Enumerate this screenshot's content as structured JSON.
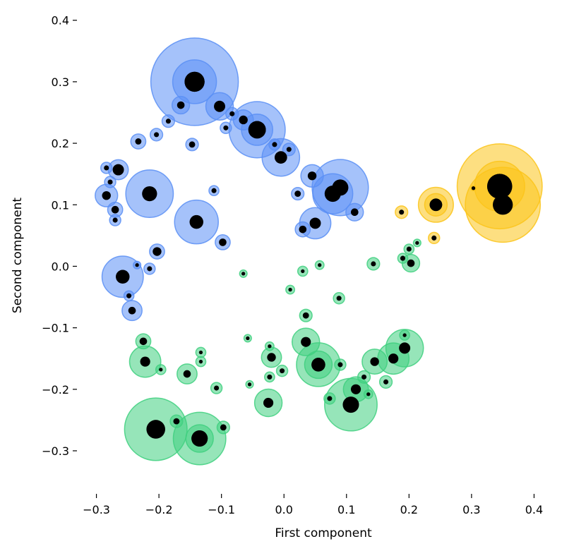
{
  "chart_data": {
    "type": "scatter",
    "title": "",
    "xlabel": "First component",
    "ylabel": "Second component",
    "xlim": [
      -0.33,
      0.43
    ],
    "ylim": [
      -0.37,
      0.41
    ],
    "x_ticks": [
      -0.3,
      -0.2,
      -0.1,
      0.0,
      0.1,
      0.2,
      0.3,
      0.4
    ],
    "x_tick_labels": [
      "−0.3",
      "−0.2",
      "−0.1",
      "0.0",
      "0.1",
      "0.2",
      "0.3",
      "0.4"
    ],
    "y_ticks": [
      0.4,
      0.3,
      0.2,
      0.1,
      0.0,
      -0.1,
      -0.2,
      -0.3
    ],
    "y_tick_labels": [
      "0.4",
      "0.3",
      "0.2",
      "0.1",
      "0.0",
      "−0.1",
      "−0.2",
      "−0.3"
    ],
    "grid": false,
    "colors": {
      "blue": "#5b8ff5",
      "green": "#3fd07f",
      "yellow": "#fcc419",
      "center": "#000000"
    },
    "series": [
      {
        "color_key": "blue",
        "points": [
          {
            "x": -0.143,
            "y": 0.3,
            "halo": 0.07,
            "core": 0.016
          },
          {
            "x": -0.143,
            "y": 0.3,
            "halo": 0.035,
            "core": 0.016
          },
          {
            "x": -0.043,
            "y": 0.222,
            "halo": 0.045,
            "core": 0.014
          },
          {
            "x": -0.043,
            "y": 0.222,
            "halo": 0.025,
            "core": 0.014
          },
          {
            "x": -0.103,
            "y": 0.26,
            "halo": 0.022,
            "core": 0.009
          },
          {
            "x": -0.065,
            "y": 0.238,
            "halo": 0.016,
            "core": 0.007
          },
          {
            "x": -0.005,
            "y": 0.177,
            "halo": 0.03,
            "core": 0.01
          },
          {
            "x": 0.09,
            "y": 0.128,
            "halo": 0.045,
            "core": 0.013
          },
          {
            "x": 0.078,
            "y": 0.118,
            "halo": 0.032,
            "core": 0.013
          },
          {
            "x": 0.05,
            "y": 0.07,
            "halo": 0.025,
            "core": 0.009
          },
          {
            "x": 0.045,
            "y": 0.147,
            "halo": 0.018,
            "core": 0.007
          },
          {
            "x": 0.113,
            "y": 0.088,
            "halo": 0.014,
            "core": 0.006
          },
          {
            "x": 0.03,
            "y": 0.06,
            "halo": 0.012,
            "core": 0.006
          },
          {
            "x": 0.022,
            "y": 0.118,
            "halo": 0.01,
            "core": 0.005
          },
          {
            "x": -0.215,
            "y": 0.118,
            "halo": 0.038,
            "core": 0.012
          },
          {
            "x": -0.14,
            "y": 0.072,
            "halo": 0.035,
            "core": 0.011
          },
          {
            "x": -0.258,
            "y": -0.017,
            "halo": 0.033,
            "core": 0.011
          },
          {
            "x": -0.265,
            "y": 0.157,
            "halo": 0.016,
            "core": 0.009
          },
          {
            "x": -0.284,
            "y": 0.115,
            "halo": 0.018,
            "core": 0.007
          },
          {
            "x": -0.27,
            "y": 0.092,
            "halo": 0.012,
            "core": 0.006
          },
          {
            "x": -0.243,
            "y": -0.072,
            "halo": 0.016,
            "core": 0.006
          },
          {
            "x": -0.203,
            "y": 0.024,
            "halo": 0.012,
            "core": 0.007
          },
          {
            "x": -0.098,
            "y": 0.039,
            "halo": 0.012,
            "core": 0.006
          },
          {
            "x": -0.165,
            "y": 0.262,
            "halo": 0.014,
            "core": 0.006
          },
          {
            "x": -0.233,
            "y": 0.203,
            "halo": 0.012,
            "core": 0.005
          },
          {
            "x": -0.204,
            "y": 0.214,
            "halo": 0.01,
            "core": 0.004
          },
          {
            "x": -0.185,
            "y": 0.236,
            "halo": 0.01,
            "core": 0.004
          },
          {
            "x": -0.147,
            "y": 0.198,
            "halo": 0.01,
            "core": 0.005
          },
          {
            "x": -0.112,
            "y": 0.123,
            "halo": 0.008,
            "core": 0.004
          },
          {
            "x": -0.015,
            "y": 0.198,
            "halo": 0.009,
            "core": 0.004
          },
          {
            "x": -0.215,
            "y": -0.004,
            "halo": 0.009,
            "core": 0.004
          },
          {
            "x": -0.235,
            "y": 0.002,
            "halo": 0.006,
            "core": 0.003
          },
          {
            "x": -0.278,
            "y": 0.137,
            "halo": 0.009,
            "core": 0.004
          },
          {
            "x": -0.284,
            "y": 0.16,
            "halo": 0.009,
            "core": 0.004
          },
          {
            "x": -0.27,
            "y": 0.075,
            "halo": 0.009,
            "core": 0.004
          },
          {
            "x": -0.248,
            "y": -0.048,
            "halo": 0.008,
            "core": 0.004
          },
          {
            "x": -0.083,
            "y": 0.248,
            "halo": 0.01,
            "core": 0.004
          },
          {
            "x": -0.093,
            "y": 0.225,
            "halo": 0.009,
            "core": 0.004
          },
          {
            "x": 0.008,
            "y": 0.19,
            "halo": 0.01,
            "core": 0.004
          }
        ]
      },
      {
        "color_key": "green",
        "points": [
          {
            "x": -0.205,
            "y": -0.265,
            "halo": 0.05,
            "core": 0.015
          },
          {
            "x": -0.135,
            "y": -0.28,
            "halo": 0.042,
            "core": 0.013
          },
          {
            "x": -0.135,
            "y": -0.28,
            "halo": 0.022,
            "core": 0.013
          },
          {
            "x": 0.107,
            "y": -0.225,
            "halo": 0.042,
            "core": 0.013
          },
          {
            "x": 0.055,
            "y": -0.16,
            "halo": 0.035,
            "core": 0.011
          },
          {
            "x": 0.055,
            "y": -0.16,
            "halo": 0.022,
            "core": 0.011
          },
          {
            "x": 0.193,
            "y": -0.133,
            "halo": 0.03,
            "core": 0.009
          },
          {
            "x": 0.175,
            "y": -0.15,
            "halo": 0.025,
            "core": 0.008
          },
          {
            "x": 0.035,
            "y": -0.123,
            "halo": 0.022,
            "core": 0.008
          },
          {
            "x": -0.025,
            "y": -0.222,
            "halo": 0.022,
            "core": 0.008
          },
          {
            "x": -0.222,
            "y": -0.155,
            "halo": 0.025,
            "core": 0.008
          },
          {
            "x": -0.225,
            "y": -0.122,
            "halo": 0.012,
            "core": 0.006
          },
          {
            "x": 0.145,
            "y": -0.155,
            "halo": 0.02,
            "core": 0.007
          },
          {
            "x": 0.115,
            "y": -0.2,
            "halo": 0.02,
            "core": 0.008
          },
          {
            "x": -0.02,
            "y": -0.148,
            "halo": 0.016,
            "core": 0.007
          },
          {
            "x": -0.155,
            "y": -0.175,
            "halo": 0.016,
            "core": 0.006
          },
          {
            "x": -0.097,
            "y": -0.262,
            "halo": 0.01,
            "core": 0.005
          },
          {
            "x": -0.172,
            "y": -0.252,
            "halo": 0.01,
            "core": 0.005
          },
          {
            "x": -0.108,
            "y": -0.198,
            "halo": 0.009,
            "core": 0.004
          },
          {
            "x": 0.035,
            "y": -0.08,
            "halo": 0.01,
            "core": 0.005
          },
          {
            "x": 0.088,
            "y": -0.052,
            "halo": 0.009,
            "core": 0.004
          },
          {
            "x": 0.143,
            "y": 0.004,
            "halo": 0.01,
            "core": 0.004
          },
          {
            "x": 0.203,
            "y": 0.005,
            "halo": 0.014,
            "core": 0.006
          },
          {
            "x": 0.2,
            "y": 0.028,
            "halo": 0.008,
            "core": 0.004
          },
          {
            "x": 0.19,
            "y": 0.013,
            "halo": 0.008,
            "core": 0.004
          },
          {
            "x": 0.213,
            "y": 0.038,
            "halo": 0.006,
            "core": 0.003
          },
          {
            "x": 0.163,
            "y": -0.188,
            "halo": 0.01,
            "core": 0.004
          },
          {
            "x": 0.128,
            "y": -0.18,
            "halo": 0.01,
            "core": 0.004
          },
          {
            "x": 0.135,
            "y": -0.208,
            "halo": 0.007,
            "core": 0.003
          },
          {
            "x": 0.073,
            "y": -0.215,
            "halo": 0.009,
            "core": 0.004
          },
          {
            "x": 0.09,
            "y": -0.16,
            "halo": 0.009,
            "core": 0.004
          },
          {
            "x": -0.003,
            "y": -0.17,
            "halo": 0.009,
            "core": 0.004
          },
          {
            "x": -0.023,
            "y": -0.18,
            "halo": 0.008,
            "core": 0.004
          },
          {
            "x": -0.023,
            "y": -0.13,
            "halo": 0.007,
            "core": 0.003
          },
          {
            "x": -0.058,
            "y": -0.117,
            "halo": 0.006,
            "core": 0.003
          },
          {
            "x": -0.055,
            "y": -0.192,
            "halo": 0.006,
            "core": 0.003
          },
          {
            "x": -0.197,
            "y": -0.168,
            "halo": 0.008,
            "core": 0.003
          },
          {
            "x": -0.133,
            "y": -0.14,
            "halo": 0.008,
            "core": 0.003
          },
          {
            "x": -0.133,
            "y": -0.155,
            "halo": 0.008,
            "core": 0.003
          },
          {
            "x": 0.03,
            "y": -0.008,
            "halo": 0.008,
            "core": 0.003
          },
          {
            "x": 0.057,
            "y": 0.002,
            "halo": 0.007,
            "core": 0.003
          },
          {
            "x": 0.01,
            "y": -0.038,
            "halo": 0.007,
            "core": 0.003
          },
          {
            "x": -0.065,
            "y": -0.012,
            "halo": 0.006,
            "core": 0.003
          },
          {
            "x": 0.193,
            "y": -0.112,
            "halo": 0.008,
            "core": 0.003
          }
        ]
      },
      {
        "color_key": "yellow",
        "points": [
          {
            "x": 0.345,
            "y": 0.13,
            "halo": 0.068,
            "core": 0.02
          },
          {
            "x": 0.35,
            "y": 0.1,
            "halo": 0.06,
            "core": 0.016
          },
          {
            "x": 0.345,
            "y": 0.13,
            "halo": 0.04,
            "core": 0.02
          },
          {
            "x": 0.243,
            "y": 0.1,
            "halo": 0.028,
            "core": 0.01
          },
          {
            "x": 0.243,
            "y": 0.1,
            "halo": 0.018,
            "core": 0.01
          },
          {
            "x": 0.24,
            "y": 0.046,
            "halo": 0.009,
            "core": 0.004
          },
          {
            "x": 0.188,
            "y": 0.088,
            "halo": 0.01,
            "core": 0.004
          },
          {
            "x": 0.303,
            "y": 0.127,
            "halo": 0.004,
            "core": 0.003
          }
        ]
      }
    ]
  }
}
